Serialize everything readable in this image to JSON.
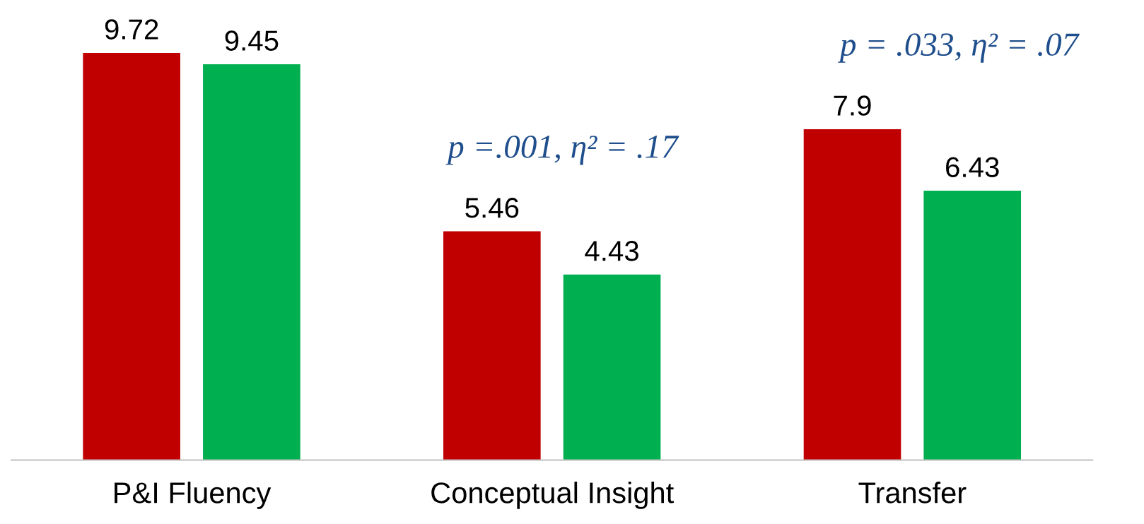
{
  "chart_data": {
    "type": "bar",
    "categories": [
      "P&I Fluency",
      "Conceptual Insight",
      "Transfer"
    ],
    "series": [
      {
        "color": "#c00000",
        "values": [
          9.72,
          5.46,
          7.9
        ]
      },
      {
        "color": "#00b050",
        "values": [
          9.45,
          4.43,
          6.43
        ]
      }
    ],
    "data_labels": true,
    "annotations": [
      "p =.001, η² = .17",
      "p = .033, η² = .07"
    ]
  }
}
